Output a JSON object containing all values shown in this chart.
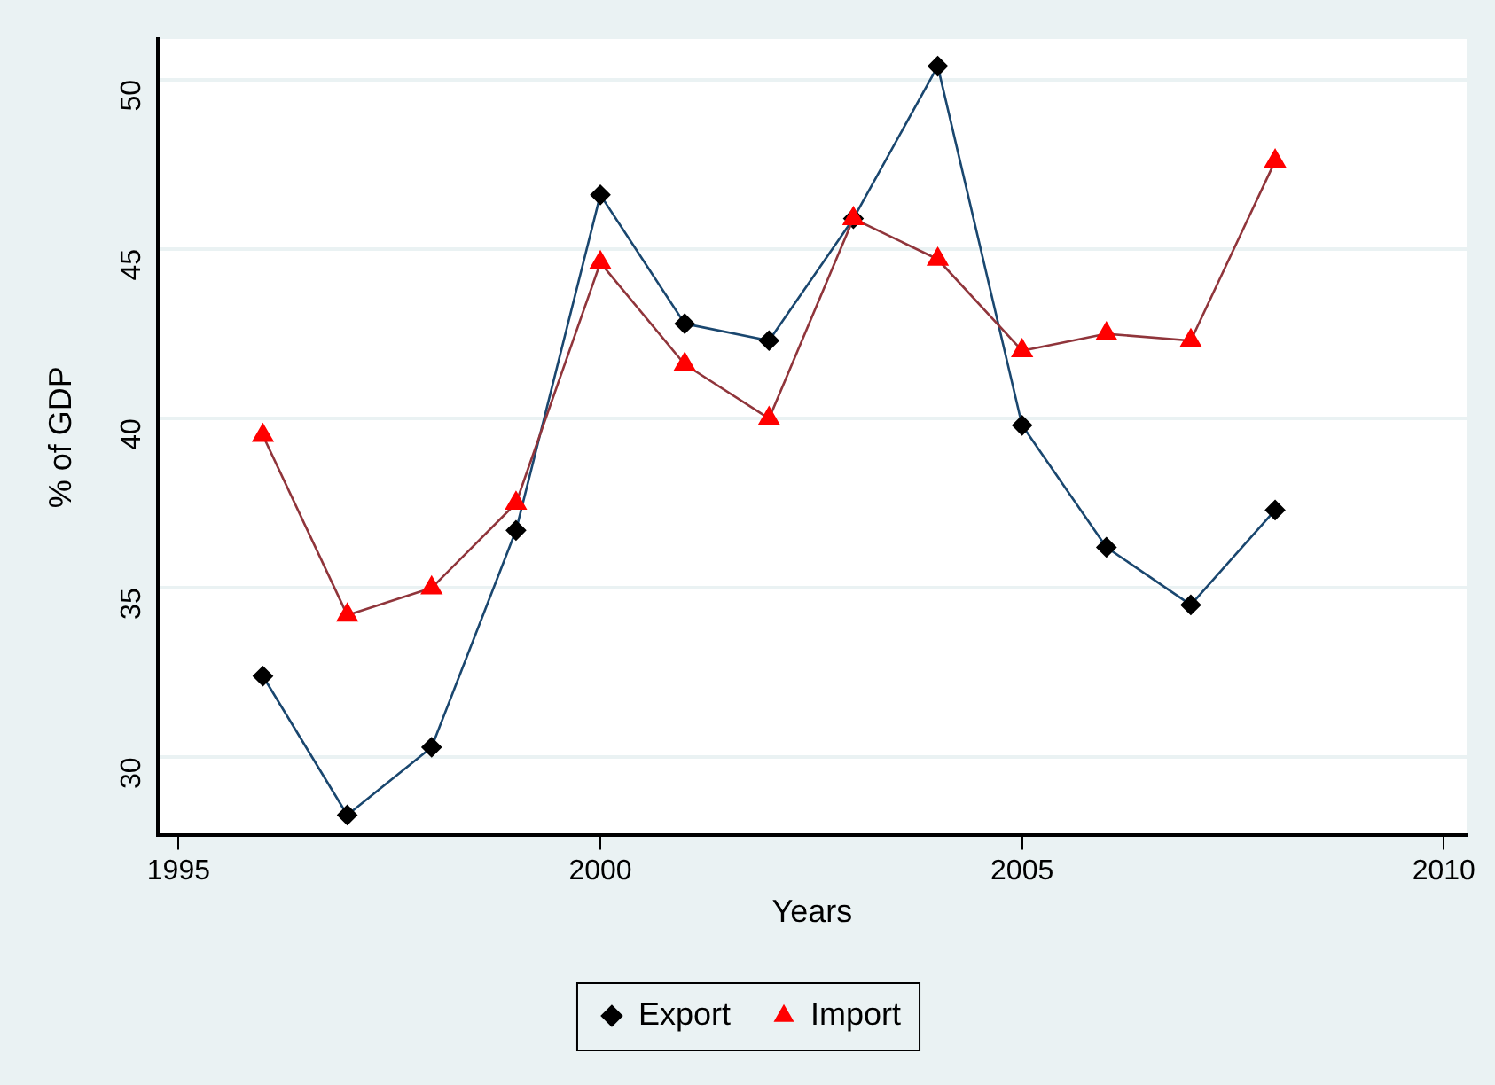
{
  "chart_data": {
    "type": "line",
    "xlabel": "Years",
    "ylabel": "% of GDP",
    "x": [
      1996,
      1997,
      1998,
      1999,
      2000,
      2001,
      2002,
      2003,
      2004,
      2005,
      2006,
      2007,
      2008
    ],
    "series": [
      {
        "name": "Export",
        "color": "#1a476f",
        "marker": "diamond",
        "values": [
          32.4,
          28.3,
          30.3,
          36.7,
          46.6,
          42.8,
          42.3,
          45.9,
          50.4,
          39.8,
          36.2,
          34.5,
          37.3
        ]
      },
      {
        "name": "Import",
        "color": "#90353b",
        "marker": "triangle",
        "values": [
          39.5,
          34.2,
          35.0,
          37.5,
          44.6,
          41.6,
          40.0,
          45.9,
          44.7,
          42.0,
          42.5,
          42.3,
          47.6
        ]
      }
    ],
    "xlim": [
      1994.75,
      2010.27
    ],
    "xticks": [
      1995,
      2000,
      2005,
      2010
    ],
    "ylim": [
      27.7,
      51.2
    ],
    "yticks": [
      30,
      35,
      40,
      45,
      50
    ],
    "grid": "y",
    "legend": "bottom",
    "line_style": "solid"
  }
}
